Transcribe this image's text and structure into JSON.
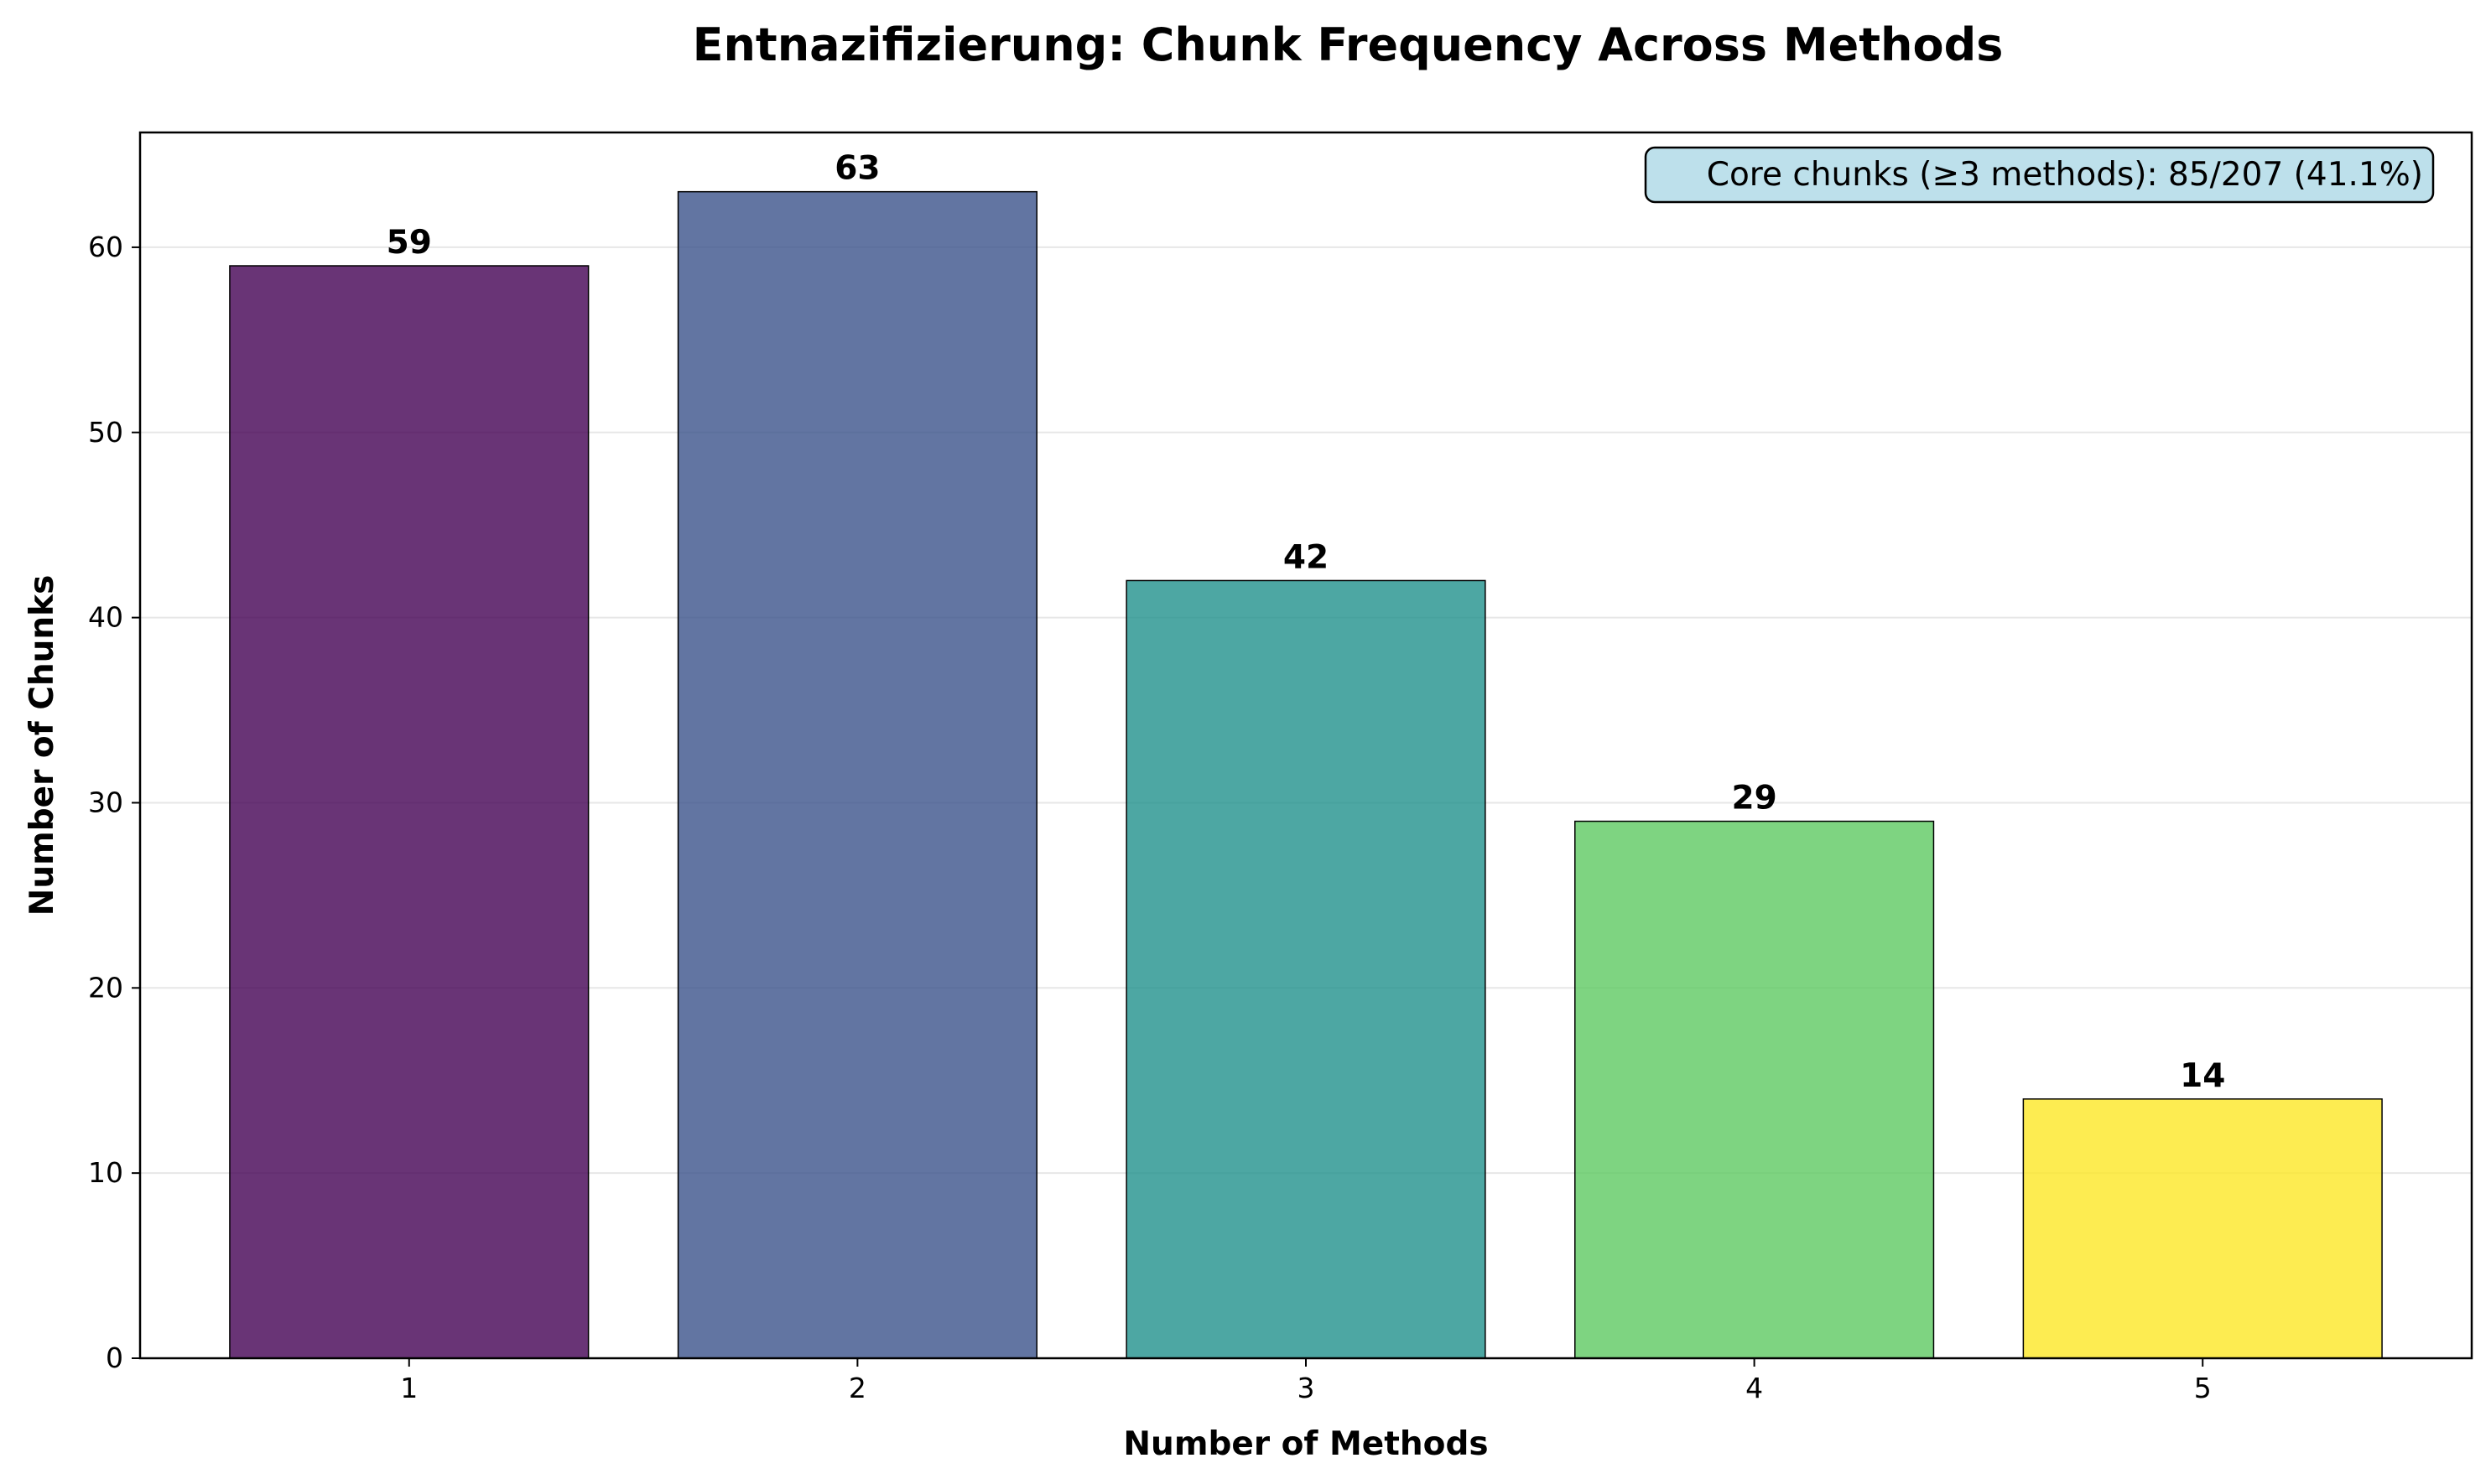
{
  "chart_data": {
    "type": "bar",
    "title": "Entnazifizierung: Chunk Frequency Across Methods",
    "xlabel": "Number of Methods",
    "ylabel": "Number of Chunks",
    "categories": [
      "1",
      "2",
      "3",
      "4",
      "5"
    ],
    "values": [
      59,
      63,
      42,
      29,
      14
    ],
    "value_labels": [
      "59",
      "63",
      "42",
      "29",
      "14"
    ],
    "colors": [
      "#440154",
      "#3b528b",
      "#21918c",
      "#5ec962",
      "#fde725"
    ],
    "bar_opacity": 0.8,
    "ylim": [
      0,
      66.2
    ],
    "yticks": [
      0,
      10,
      20,
      30,
      40,
      50,
      60
    ],
    "ytick_labels": [
      "0",
      "10",
      "20",
      "30",
      "40",
      "50",
      "60"
    ],
    "grid": "y",
    "annotation": {
      "text": "Core chunks (≥3 methods): 85/207 (41.1%)",
      "placement": "top-right",
      "background": "#add8e6"
    }
  }
}
